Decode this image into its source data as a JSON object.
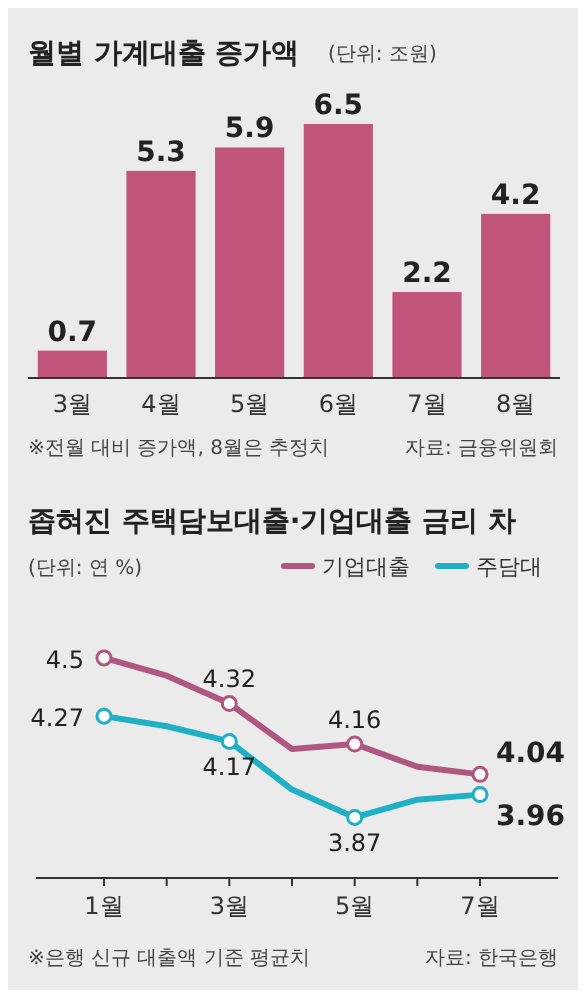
{
  "chart_data": [
    {
      "type": "bar",
      "title": "월별 가계대출 증가액",
      "subtitle": "(단위: 조원)",
      "categories": [
        "3월",
        "4월",
        "5월",
        "6월",
        "7월",
        "8월"
      ],
      "values": [
        0.7,
        5.3,
        5.9,
        6.5,
        2.2,
        4.2
      ],
      "color": "#c0547a",
      "data_labels": true,
      "annotations": [
        "※전월 대비 증가액, 8월은 추정치",
        "자료: 금융위원회"
      ]
    },
    {
      "type": "line",
      "title": "좁혀진 주택담보대출·기업대출 금리 차",
      "subtitle": "(단위: 연 %)",
      "categories": [
        "1월",
        null,
        "3월",
        null,
        "5월",
        null,
        "7월"
      ],
      "legend": "top right",
      "marker": "circle",
      "line_style": "solid",
      "series": [
        {
          "name": "기업대출",
          "color": "#b0577f",
          "values": [
            4.5,
            4.43,
            4.32,
            4.14,
            4.16,
            4.07,
            4.04
          ],
          "value_labels": [
            "4.5",
            null,
            "4.32",
            null,
            "4.16",
            null,
            "4.04"
          ]
        },
        {
          "name": "주담대",
          "color": "#1fb0c6",
          "values": [
            4.27,
            4.23,
            4.17,
            3.98,
            3.87,
            3.94,
            3.96
          ],
          "value_labels": [
            "4.27",
            null,
            "4.17",
            null,
            "3.87",
            null,
            "3.96"
          ]
        }
      ],
      "annotations": [
        "※은행 신규 대출액 기준 평균치",
        "자료: 한국은행"
      ]
    }
  ]
}
